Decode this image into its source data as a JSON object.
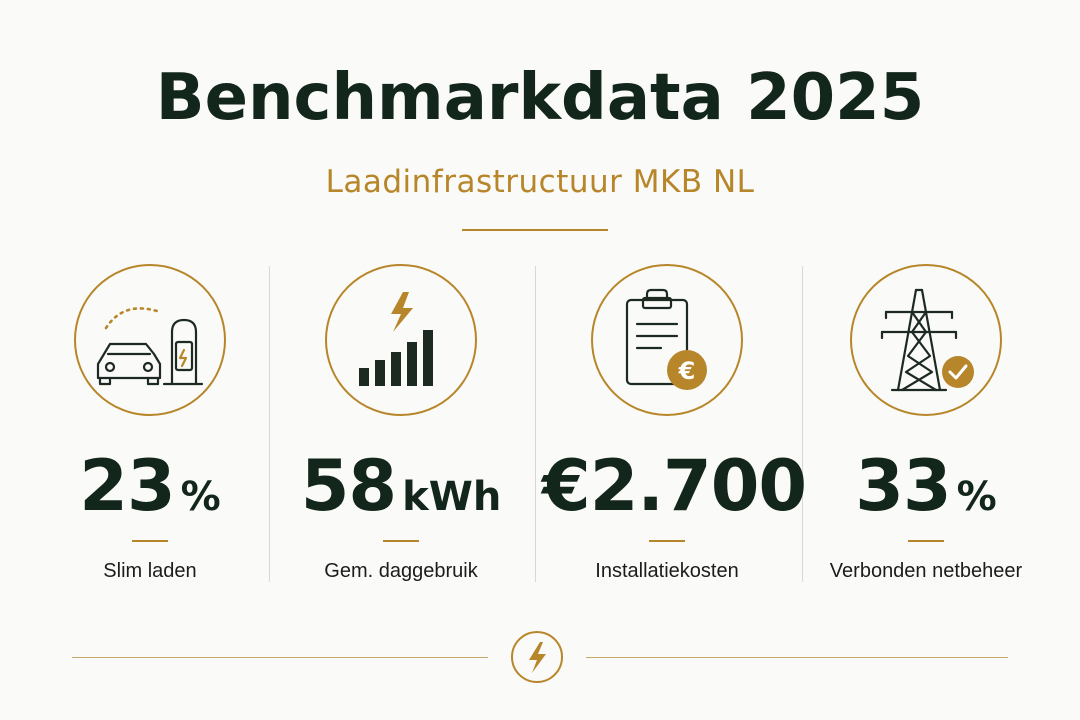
{
  "header": {
    "title": "Benchmarkdata 2025",
    "subtitle": "Laadinfrastructuur MKB NL"
  },
  "stats": [
    {
      "icon": "ev-charging-car-icon",
      "value": "23",
      "unit": "%",
      "label": "Slim laden"
    },
    {
      "icon": "energy-usage-bars-icon",
      "value": "58",
      "unit": "kWh",
      "label": "Gem. daggebruik"
    },
    {
      "icon": "invoice-euro-icon",
      "value": "€2.700",
      "unit": "",
      "label": "Installatiekosten"
    },
    {
      "icon": "power-pylon-check-icon",
      "value": "33",
      "unit": "%",
      "label": "Verbonden netbeheer"
    }
  ],
  "footer": {
    "icon": "lightning-bolt-icon"
  },
  "colors": {
    "accent": "#b8862a",
    "text_dark": "#13261b",
    "background": "#fafaf8"
  }
}
